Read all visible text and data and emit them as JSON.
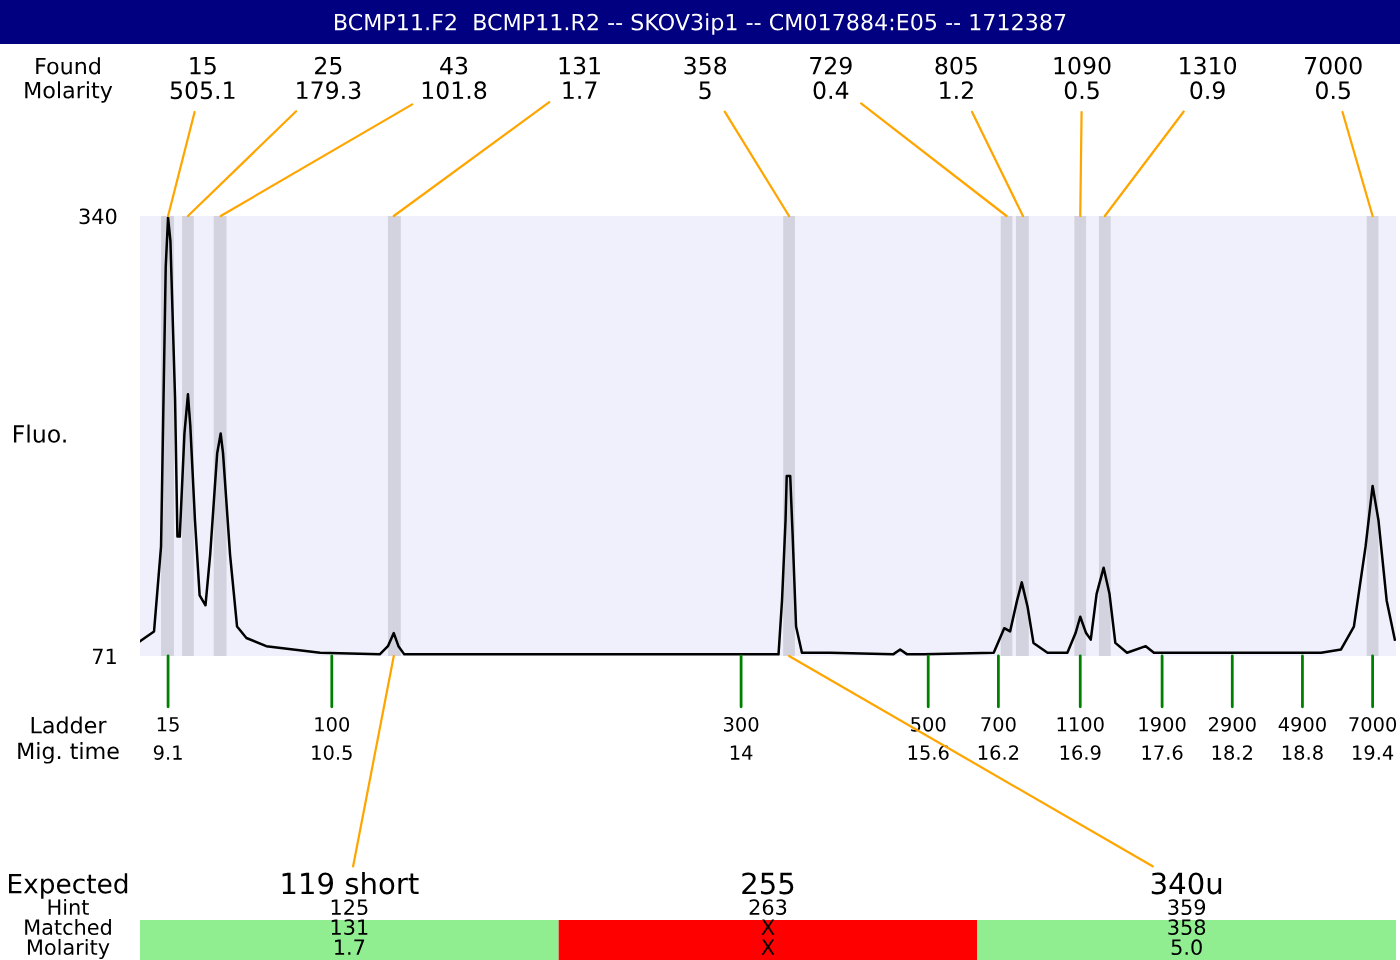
{
  "chart_data": [
    {
      "type": "line",
      "title": "BCMP11.F2  BCMP11.R2 -- SKOV3ip1 -- CM017884:E05 -- 1712387",
      "ylabel": "Fluo.",
      "xlabel": "Ladder\nMig. time",
      "x": [
        8.86,
        8.98,
        9.04,
        9.08,
        9.1,
        9.12,
        9.16,
        9.18,
        9.2,
        9.24,
        9.27,
        9.29,
        9.33,
        9.37,
        9.42,
        9.46,
        9.52,
        9.55,
        9.57,
        9.63,
        9.69,
        9.77,
        9.94,
        10.4,
        10.91,
        10.98,
        11.03,
        11.07,
        11.12,
        11.43,
        14.32,
        14.35,
        14.38,
        14.39,
        14.42,
        14.44,
        14.47,
        14.52,
        14.76,
        15.3,
        15.36,
        15.42,
        15.56,
        16.16,
        16.25,
        16.3,
        16.36,
        16.4,
        16.45,
        16.5,
        16.62,
        16.79,
        16.86,
        16.9,
        16.95,
        16.99,
        17.04,
        17.1,
        17.15,
        17.2,
        17.3,
        17.46,
        17.53,
        17.81,
        18.96,
        19.13,
        19.24,
        19.34,
        19.4,
        19.45,
        19.52,
        19.59
      ],
      "series": [
        {
          "color": "#000000",
          "values": [
            80,
            86,
            138,
            309,
            339,
            325,
            228,
            144,
            144,
            207,
            231,
            212,
            154,
            108,
            102,
            133,
            195,
            207,
            195,
            133,
            89,
            82,
            77,
            73,
            72,
            77,
            85,
            77,
            72,
            72,
            72,
            105,
            154,
            181,
            181,
            146,
            89,
            73,
            73,
            72,
            75,
            72,
            72,
            73,
            88,
            86,
            105,
            116,
            101,
            79,
            73,
            73,
            85,
            95,
            85,
            81,
            109,
            125,
            109,
            79,
            73,
            77,
            73,
            73,
            73,
            75,
            89,
            138,
            175,
            154,
            105,
            81
          ]
        }
      ],
      "xlim": [
        8.86,
        19.6
      ],
      "ylim": [
        71,
        340
      ],
      "yticks": [
        71,
        340
      ],
      "xticks": [
        9.1,
        10.5,
        14,
        15.6,
        16.2,
        16.9,
        17.6,
        18.2,
        18.8,
        19.4
      ],
      "bands": [
        {
          "axis": "x",
          "from": 9.04,
          "to": 9.15,
          "color": "#d3d3df"
        },
        {
          "axis": "x",
          "from": 9.22,
          "to": 9.32,
          "color": "#d3d3df"
        },
        {
          "axis": "x",
          "from": 9.49,
          "to": 9.6,
          "color": "#d3d3df"
        },
        {
          "axis": "x",
          "from": 10.98,
          "to": 11.09,
          "color": "#d3d3df"
        },
        {
          "axis": "x",
          "from": 14.36,
          "to": 14.46,
          "color": "#d3d3df"
        },
        {
          "axis": "x",
          "from": 16.22,
          "to": 16.32,
          "color": "#d3d3df"
        },
        {
          "axis": "x",
          "from": 16.35,
          "to": 16.46,
          "color": "#d3d3df"
        },
        {
          "axis": "x",
          "from": 16.85,
          "to": 16.95,
          "color": "#d3d3df"
        },
        {
          "axis": "x",
          "from": 17.06,
          "to": 17.16,
          "color": "#d3d3df"
        },
        {
          "axis": "x",
          "from": 19.35,
          "to": 19.45,
          "color": "#d3d3df"
        }
      ],
      "annotations": [
        "Found\nMolarity",
        {
          "text": "15\n505.1",
          "x": 9.1,
          "y": 340
        },
        {
          "text": "25\n179.3",
          "x": 9.27,
          "y": 340
        },
        {
          "text": "43\n101.8",
          "x": 9.55,
          "y": 340
        },
        {
          "text": "131\n1.7",
          "x": 11.03,
          "y": 340
        },
        {
          "text": "358\n5",
          "x": 14.41,
          "y": 340
        },
        {
          "text": "729\n0.4",
          "x": 16.27,
          "y": 340
        },
        {
          "text": "805\n1.2",
          "x": 16.41,
          "y": 340
        },
        {
          "text": "1090\n0.5",
          "x": 16.9,
          "y": 340
        },
        {
          "text": "1310\n0.9",
          "x": 17.11,
          "y": 340
        },
        {
          "text": "7000\n0.5",
          "x": 19.4,
          "y": 340
        },
        {
          "text": "15",
          "x": 9.1,
          "y": 71
        },
        {
          "text": "100",
          "x": 10.5,
          "y": 71
        },
        {
          "text": "300",
          "x": 14,
          "y": 71
        },
        {
          "text": "500",
          "x": 15.6,
          "y": 71
        },
        {
          "text": "700",
          "x": 16.2,
          "y": 71
        },
        {
          "text": "1100",
          "x": 16.9,
          "y": 71
        },
        {
          "text": "1900",
          "x": 17.6,
          "y": 71
        },
        {
          "text": "2900",
          "x": 18.2,
          "y": 71
        },
        {
          "text": "4900",
          "x": 18.8,
          "y": 71
        },
        {
          "text": "7000",
          "x": 19.4,
          "y": 71
        },
        "Expected",
        {
          "text": "119 short",
          "x": 11.03,
          "y": 71
        },
        "255",
        {
          "text": "340u",
          "x": 14.41,
          "y": 71
        }
      ]
    },
    {
      "type": "other",
      "y_categories": [
        "Hint",
        "Matched",
        "Molarity"
      ],
      "cell_labels": [
        [
          "125",
          "263",
          "359"
        ],
        [
          "131",
          "X",
          "358"
        ],
        [
          "1.7",
          "X",
          "5.0"
        ]
      ],
      "colors": [
        [
          null,
          null,
          null
        ],
        [
          "#90ee90",
          "#ff0000",
          "#90ee90"
        ],
        [
          "#90ee90",
          "#ff0000",
          "#90ee90"
        ]
      ]
    }
  ]
}
